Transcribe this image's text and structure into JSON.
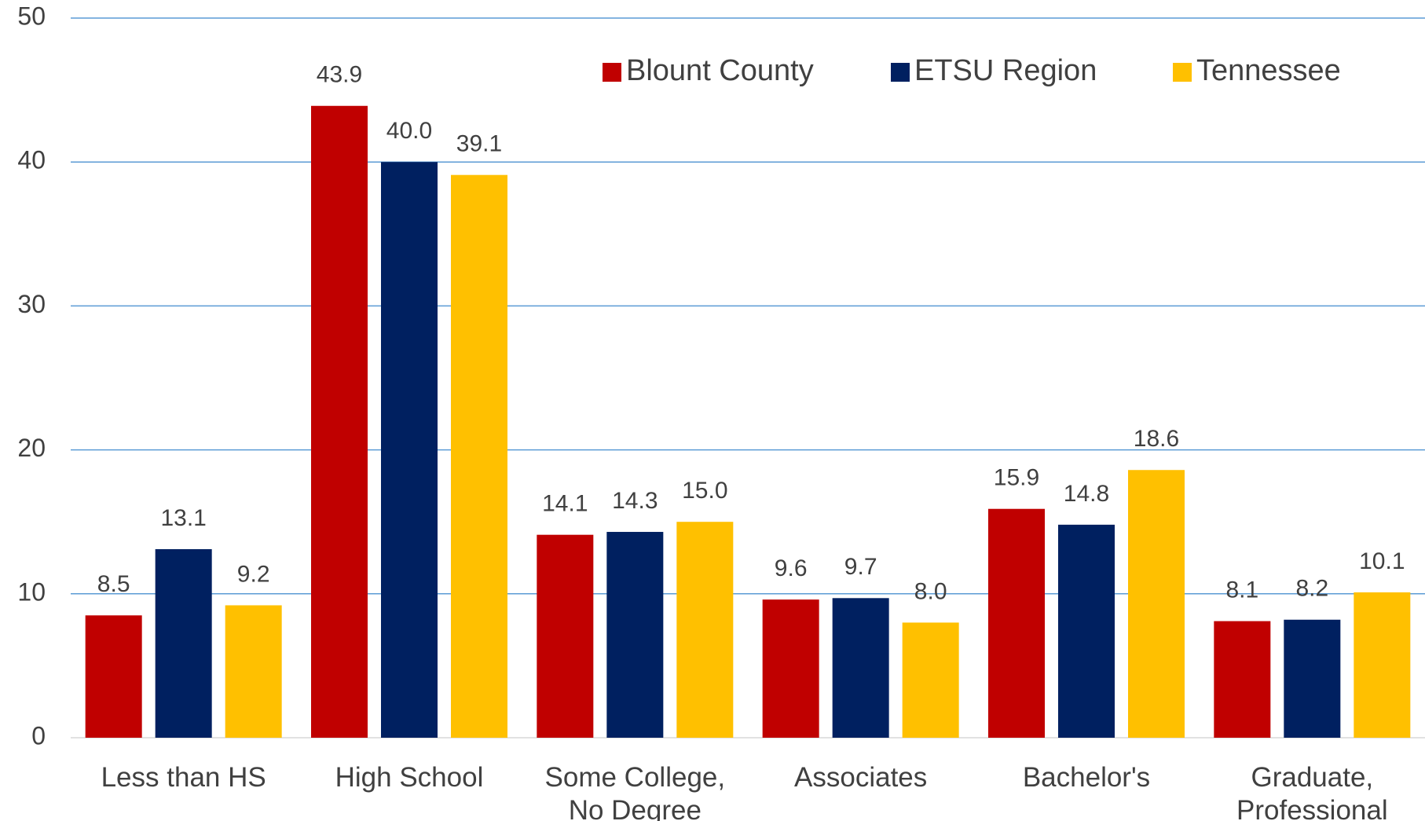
{
  "chart_data": {
    "type": "bar",
    "categories": [
      "Less than HS",
      "High School",
      "Some College, No Degree",
      "Associates",
      "Bachelor's",
      "Graduate, Professional"
    ],
    "series": [
      {
        "name": "Blount County",
        "color": "#c00000",
        "values": [
          8.5,
          43.9,
          14.1,
          9.6,
          15.9,
          8.1
        ],
        "value_labels": [
          "8.5",
          "43.9",
          "14.1",
          "9.6",
          "15.9",
          "8.1"
        ]
      },
      {
        "name": "ETSU Region",
        "color": "#002060",
        "values": [
          13.1,
          40.0,
          14.3,
          9.7,
          14.8,
          8.2
        ],
        "value_labels": [
          "13.1",
          "40.0",
          "14.3",
          "9.7",
          "14.8",
          "8.2"
        ]
      },
      {
        "name": "Tennessee",
        "color": "#ffc000",
        "values": [
          9.2,
          39.1,
          15.0,
          8.0,
          18.6,
          10.1
        ],
        "value_labels": [
          "9.2",
          "39.1",
          "15.0",
          "8.0",
          "18.6",
          "10.1"
        ]
      }
    ],
    "ylim": [
      0,
      50
    ],
    "yticks": [
      0,
      10,
      20,
      30,
      40,
      50
    ],
    "grid": true,
    "legend": "upper right"
  }
}
